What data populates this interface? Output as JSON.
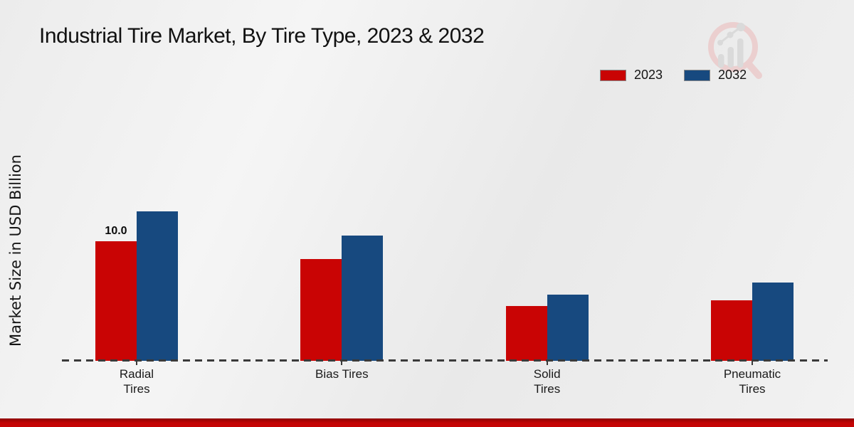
{
  "chart_data": {
    "type": "bar",
    "title": "Industrial Tire Market, By Tire Type, 2023 & 2032",
    "xlabel": "",
    "ylabel": "Market Size in USD Billion",
    "categories": [
      "Radial Tires",
      "Bias Tires",
      "Solid Tires",
      "Pneumatic Tires"
    ],
    "category_label_lines": [
      [
        "Radial",
        "Tires"
      ],
      [
        "Bias Tires"
      ],
      [
        "Solid",
        "Tires"
      ],
      [
        "Pneumatic",
        "Tires"
      ]
    ],
    "series": [
      {
        "name": "2023",
        "color": "#c90404",
        "values": [
          10.0,
          8.5,
          4.5,
          5.0
        ]
      },
      {
        "name": "2032",
        "color": "#17497f",
        "values": [
          12.5,
          10.5,
          5.5,
          6.5
        ]
      }
    ],
    "bar_value_labels": [
      {
        "series_index": 0,
        "category_index": 0,
        "text": "10.0"
      }
    ],
    "ylim": [
      0,
      14
    ],
    "grid": false,
    "legend_position": "top-right",
    "x_axis_style": "dashed",
    "accent_colors": {
      "footer_strip": "#c40404",
      "axis_dash": "#3a3a3a"
    }
  },
  "watermark": {
    "icon": "magnifier-growth-chart-logo"
  }
}
